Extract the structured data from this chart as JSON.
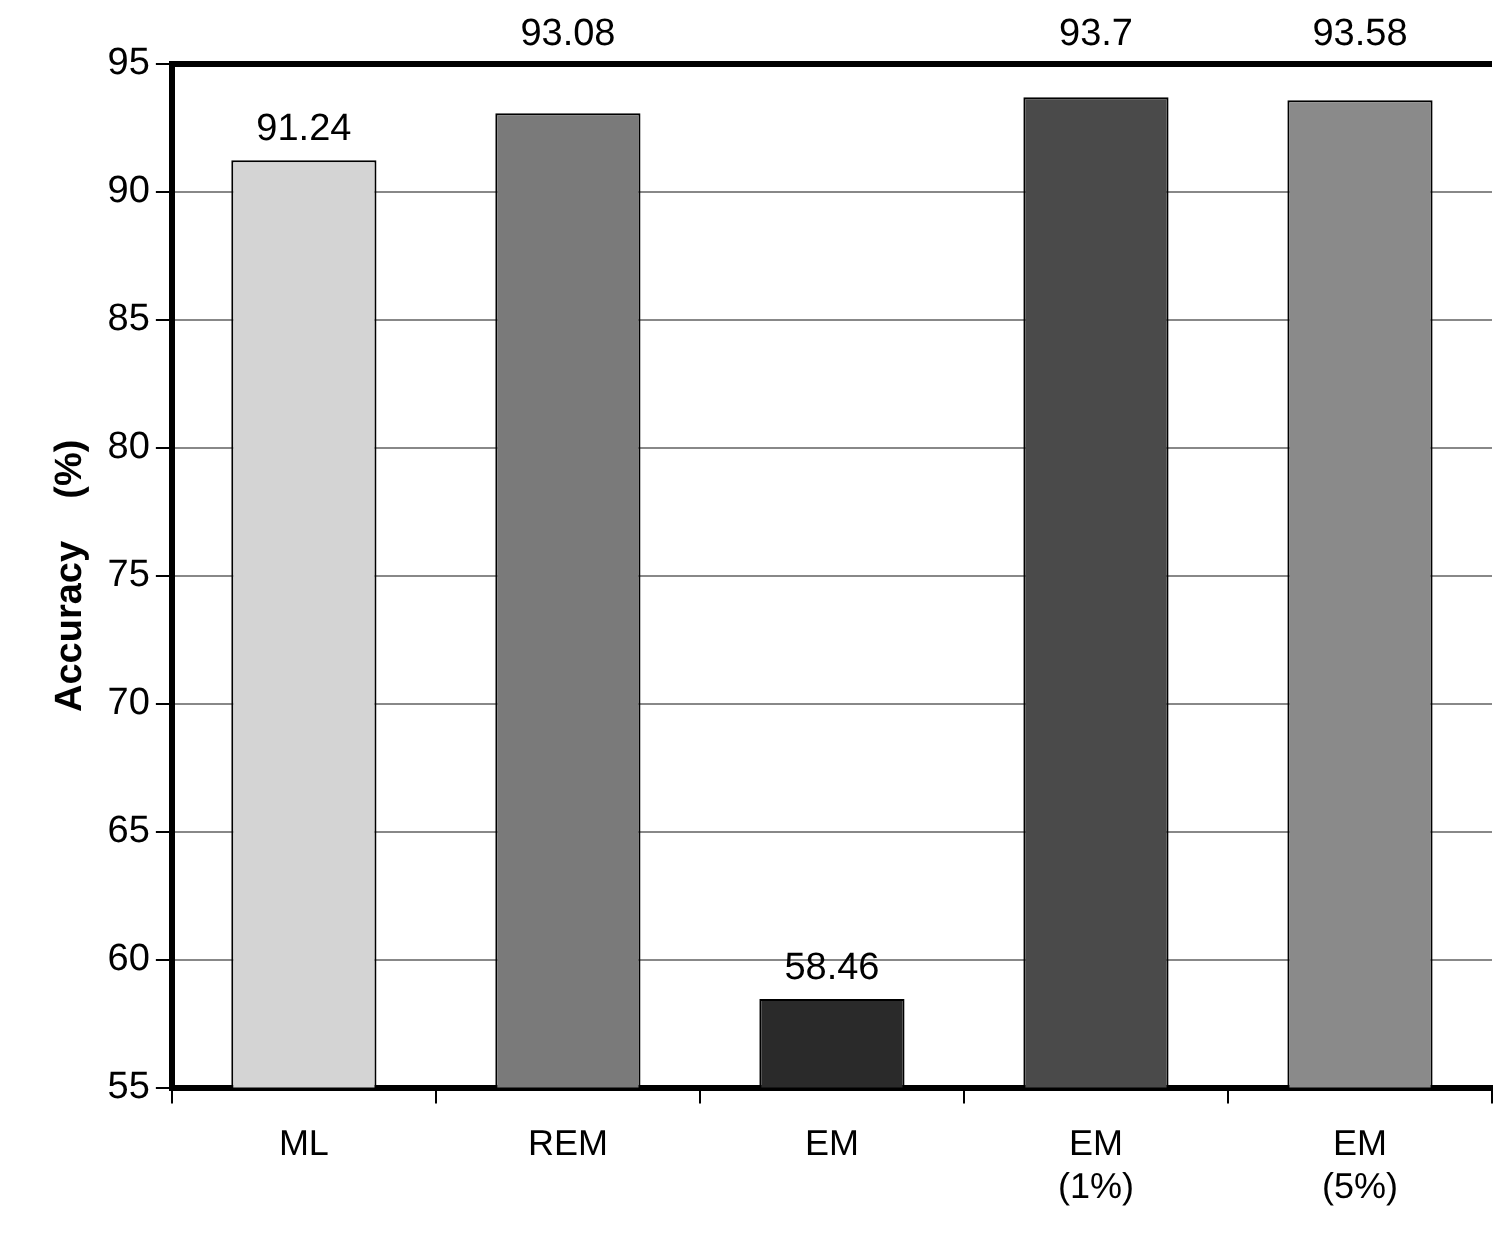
{
  "chart_data": {
    "type": "bar",
    "ylabel": "Accuracy    (%)",
    "categories": [
      "ML",
      "REM",
      "EM",
      "EM\n(1%)",
      "EM\n(5%)"
    ],
    "values": [
      91.24,
      93.08,
      58.46,
      93.7,
      93.58
    ],
    "colors": [
      "#d4d4d4",
      "#7a7a7a",
      "#2a2a2a",
      "#4a4a4a",
      "#8a8a8a"
    ],
    "ylim": [
      55,
      95
    ],
    "yticks": [
      55,
      60,
      65,
      70,
      75,
      80,
      85,
      90,
      95
    ],
    "grid": "y",
    "data_labels": true,
    "legend": false
  }
}
